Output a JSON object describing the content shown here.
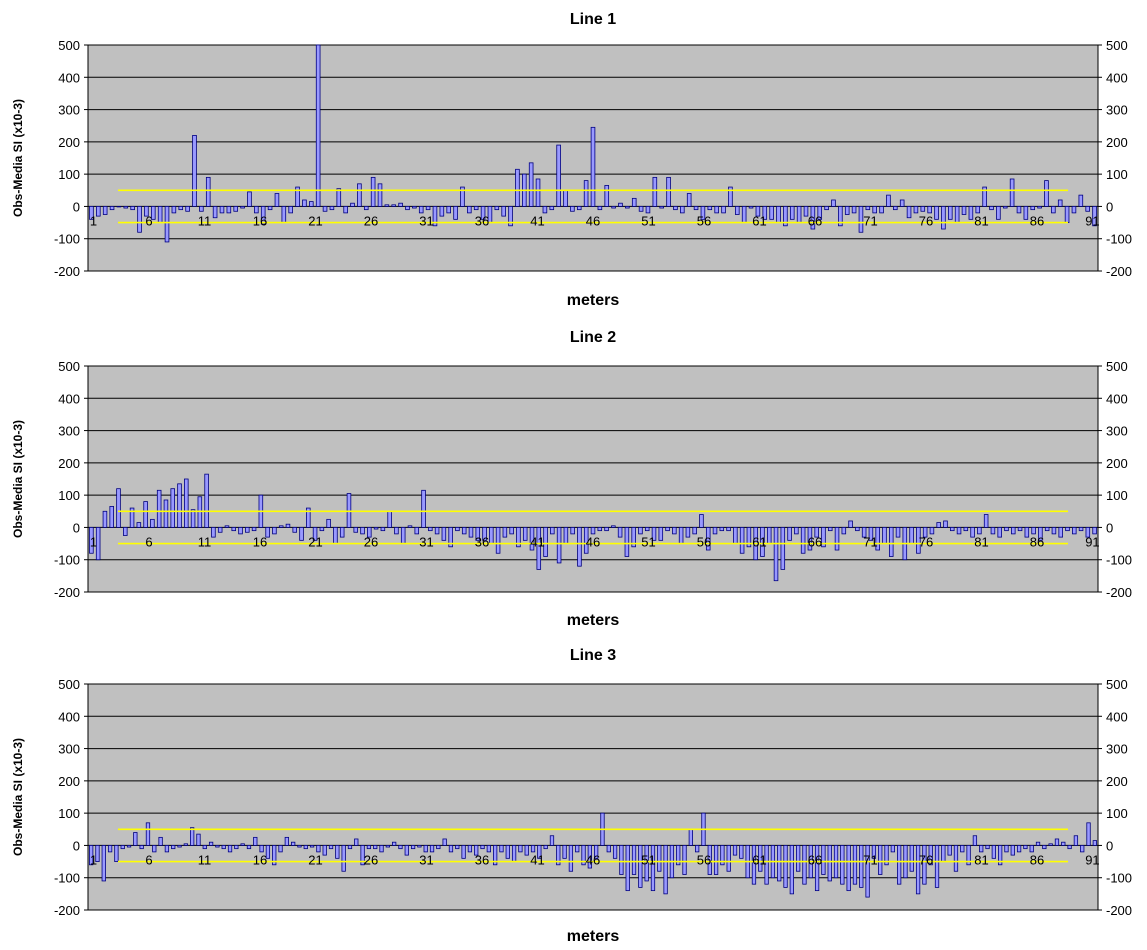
{
  "colors": {
    "plot_bg": "#c0c0c0",
    "bar_fill": "#9999ff",
    "bar_stroke": "#000080",
    "threshold": "#ffff00",
    "grid": "#000000"
  },
  "chart_data": [
    {
      "type": "bar",
      "title": "Line 1",
      "xlabel": "meters",
      "ylabel": "Obs-Media SI (x10-3)",
      "ylim": [
        -200,
        500
      ],
      "yticks": [
        500,
        400,
        300,
        200,
        100,
        0,
        -100,
        -200
      ],
      "grid": true,
      "threshold_lines": [
        50,
        -50
      ],
      "x_tick_labels": [
        "1",
        "6",
        "11",
        "16",
        "21",
        "26",
        "31",
        "36",
        "41",
        "46",
        "51",
        "56",
        "61",
        "66",
        "71",
        "76",
        "81",
        "86",
        "91"
      ],
      "values": [
        -40,
        -30,
        -25,
        -10,
        0,
        -5,
        -10,
        -80,
        -30,
        -40,
        -50,
        -110,
        -20,
        -10,
        -15,
        220,
        -15,
        90,
        -35,
        -20,
        -20,
        -15,
        -5,
        45,
        -20,
        -55,
        -10,
        40,
        -50,
        -20,
        60,
        20,
        15,
        510,
        -15,
        -10,
        55,
        -20,
        10,
        70,
        -10,
        90,
        70,
        5,
        5,
        10,
        -10,
        -5,
        -20,
        -10,
        -60,
        -30,
        -20,
        -40,
        60,
        -20,
        -10,
        -40,
        -50,
        -10,
        -30,
        -60,
        115,
        100,
        135,
        85,
        -20,
        -10,
        190,
        50,
        -15,
        -10,
        80,
        245,
        -10,
        65,
        -5,
        10,
        -5,
        25,
        -15,
        -20,
        90,
        -5,
        90,
        -10,
        -20,
        40,
        -10,
        -40,
        -10,
        -20,
        -20,
        60,
        -25,
        -50,
        -5,
        -30,
        -40,
        -40,
        -50,
        -60,
        -40,
        -50,
        -30,
        -70,
        -40,
        -10,
        20,
        -60,
        -25,
        -20,
        -80,
        -10,
        -20,
        -20,
        35,
        -10,
        20,
        -35,
        -20,
        -15,
        -20,
        -40,
        -70,
        -40,
        -50,
        -25,
        -40,
        -20,
        60,
        -10,
        -40,
        -5,
        85,
        -20,
        -40,
        -10,
        -5,
        80,
        -20,
        20,
        -50,
        -20,
        35,
        -15,
        -60
      ]
    },
    {
      "type": "bar",
      "title": "Line 2",
      "xlabel": "meters",
      "ylabel": "Obs-Media SI (x10-3)",
      "ylim": [
        -200,
        500
      ],
      "yticks": [
        500,
        400,
        300,
        200,
        100,
        0,
        -100,
        -200
      ],
      "grid": true,
      "threshold_lines": [
        50,
        -50
      ],
      "x_tick_labels": [
        "1",
        "6",
        "11",
        "16",
        "21",
        "26",
        "31",
        "36",
        "41",
        "46",
        "51",
        "56",
        "61",
        "66",
        "71",
        "76",
        "81",
        "86",
        "91"
      ],
      "values": [
        -80,
        -100,
        50,
        65,
        120,
        -25,
        60,
        15,
        80,
        25,
        115,
        85,
        120,
        135,
        150,
        55,
        95,
        165,
        -30,
        -15,
        5,
        -10,
        -20,
        -15,
        -10,
        100,
        -30,
        -20,
        5,
        10,
        -15,
        -40,
        60,
        -40,
        -10,
        25,
        -50,
        -30,
        105,
        -15,
        -20,
        -30,
        -5,
        -10,
        50,
        -20,
        -50,
        5,
        -20,
        115,
        -10,
        -20,
        -40,
        -60,
        -10,
        -20,
        -30,
        -40,
        -40,
        -50,
        -80,
        -30,
        -20,
        -60,
        -40,
        -70,
        -130,
        -90,
        -20,
        -110,
        -50,
        -20,
        -120,
        -80,
        -20,
        -10,
        -10,
        5,
        -30,
        -90,
        -60,
        -20,
        -10,
        -40,
        -40,
        -10,
        -20,
        -50,
        -30,
        -20,
        40,
        -70,
        -20,
        -10,
        -10,
        -50,
        -80,
        -60,
        -100,
        -90,
        -50,
        -165,
        -130,
        -40,
        -20,
        -80,
        -70,
        -30,
        -60,
        -10,
        -70,
        -20,
        20,
        -10,
        -30,
        -40,
        -70,
        -50,
        -90,
        -30,
        -100,
        -50,
        -80,
        -30,
        -20,
        15,
        20,
        -10,
        -20,
        -10,
        -30,
        -20,
        40,
        -20,
        -30,
        -10,
        -20,
        -10,
        -30,
        -20,
        -40,
        -10,
        -20,
        -30,
        -10,
        -20,
        -10,
        -30,
        -20
      ]
    },
    {
      "type": "bar",
      "title": "Line 3",
      "xlabel": "meters",
      "ylabel": "Obs-Media SI (x10-3)",
      "ylim": [
        -200,
        500
      ],
      "yticks": [
        500,
        400,
        300,
        200,
        100,
        0,
        -100,
        -200
      ],
      "grid": true,
      "threshold_lines": [
        50,
        -50
      ],
      "x_tick_labels": [
        "1",
        "6",
        "11",
        "16",
        "21",
        "26",
        "31",
        "36",
        "41",
        "46",
        "51",
        "56",
        "61",
        "66",
        "71",
        "76",
        "81",
        "86",
        "91"
      ],
      "values": [
        -60,
        -50,
        -110,
        -20,
        -50,
        -10,
        -5,
        40,
        -10,
        70,
        -20,
        25,
        -20,
        -10,
        -5,
        5,
        55,
        35,
        -10,
        10,
        -5,
        -10,
        -20,
        -10,
        5,
        -10,
        25,
        -20,
        -40,
        -60,
        -20,
        25,
        10,
        -5,
        -10,
        -5,
        -20,
        -30,
        -10,
        -40,
        -80,
        -10,
        20,
        -60,
        -10,
        -10,
        -20,
        -5,
        10,
        -10,
        -30,
        -10,
        -5,
        -20,
        -20,
        -10,
        20,
        -20,
        -10,
        -40,
        -20,
        -30,
        -10,
        -20,
        -60,
        -20,
        -40,
        -50,
        -20,
        -30,
        -20,
        -40,
        -10,
        30,
        -60,
        -40,
        -80,
        -20,
        -60,
        -70,
        -40,
        100,
        -20,
        -40,
        -90,
        -140,
        -90,
        -130,
        -110,
        -140,
        -80,
        -150,
        -100,
        -60,
        -90,
        50,
        -20,
        100,
        -90,
        -90,
        -60,
        -80,
        -30,
        -40,
        -100,
        -120,
        -80,
        -120,
        -100,
        -110,
        -130,
        -150,
        -80,
        -120,
        -100,
        -140,
        -90,
        -110,
        -100,
        -120,
        -140,
        -120,
        -130,
        -160,
        -40,
        -90,
        -60,
        -20,
        -120,
        -100,
        -80,
        -150,
        -120,
        -60,
        -130,
        -50,
        -30,
        -80,
        -20,
        -60,
        30,
        -20,
        -10,
        -40,
        -60,
        -20,
        -30,
        -20,
        -10,
        -20,
        10,
        -10,
        5,
        20,
        10,
        -10,
        30,
        -20,
        70,
        15
      ]
    }
  ]
}
